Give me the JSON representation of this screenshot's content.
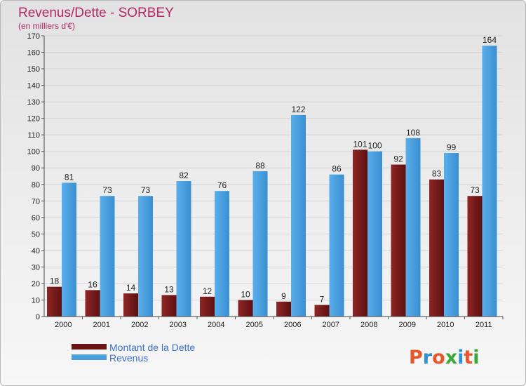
{
  "chart_data": {
    "type": "bar",
    "title": "Revenus/Dette - SORBEY",
    "subtitle": "(en milliers d'€)",
    "categories": [
      "2000",
      "2001",
      "2002",
      "2003",
      "2004",
      "2005",
      "2006",
      "2007",
      "2008",
      "2009",
      "2010",
      "2011"
    ],
    "series": [
      {
        "name": "Montant de la Dette",
        "color": "#7a1b1b",
        "values": [
          18,
          16,
          14,
          13,
          12,
          10,
          9,
          7,
          101,
          92,
          83,
          73
        ]
      },
      {
        "name": "Revenus",
        "color": "#4a9fe0",
        "values": [
          81,
          73,
          73,
          82,
          76,
          88,
          122,
          86,
          100,
          108,
          99,
          164
        ]
      }
    ],
    "ylim": [
      0,
      170
    ],
    "ytick_step": 10,
    "grid": true,
    "legend": "bottom-left"
  },
  "logo": {
    "text": "Proxiti",
    "colors": [
      "#e8562a",
      "#2f8fd8",
      "#e8562a",
      "#3aa836",
      "#2f8fd8",
      "#e8562a",
      "#3aa836"
    ]
  }
}
